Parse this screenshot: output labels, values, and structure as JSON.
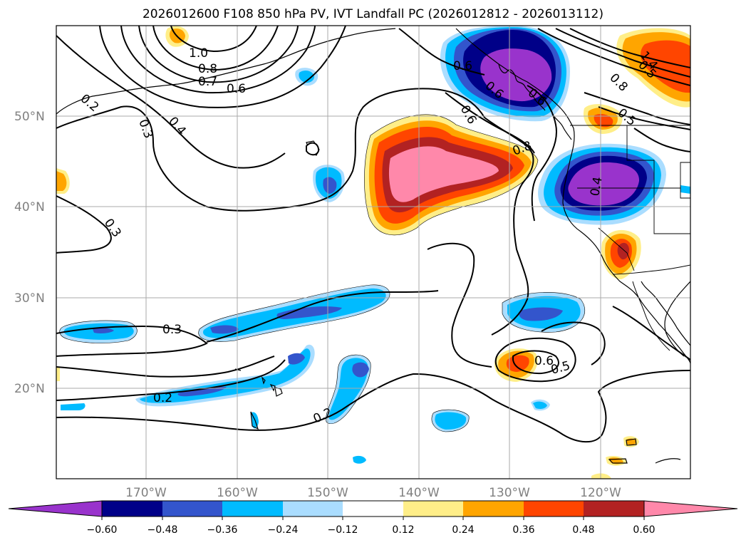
{
  "title": "2026012600 F108 850 hPa PV, IVT Landfall PC (2026012812 - 2026013112)",
  "map": {
    "lat_labels": [
      "50°N",
      "40°N",
      "30°N",
      "20°N"
    ],
    "lon_labels": [
      "170°W",
      "160°W",
      "150°W",
      "140°W",
      "130°W",
      "120°W"
    ],
    "contour_labels": [
      "1.0",
      "0.8",
      "0.7",
      "0.6",
      "0.2",
      "0.3",
      "0.4",
      "0.3",
      "0.3",
      "0.2",
      "0.2",
      "0.6",
      "0.8",
      "0.6",
      "0.5",
      "0.6",
      "0.5",
      "0.8",
      "0.5",
      "0.4",
      "1.4",
      "0.6",
      "0.6"
    ]
  },
  "colorbar": {
    "labels": [
      "−0.60",
      "−0.48",
      "−0.36",
      "−0.24",
      "−0.12",
      "0.12",
      "0.24",
      "0.36",
      "0.48",
      "0.60"
    ],
    "colors": [
      "#9933cc",
      "#000088",
      "#3355cc",
      "#00bbff",
      "#aaddff",
      "#ffffff",
      "#ffee88",
      "#ffa500",
      "#ff4500",
      "#b22222",
      "#ff88aa"
    ]
  },
  "palette": {
    "purple": "#9933cc",
    "navy": "#000088",
    "blue": "#3355cc",
    "cyan": "#00bbff",
    "lightblue": "#aaddff",
    "yellow": "#ffee88",
    "orange": "#ffa500",
    "red": "#ff4500",
    "darkred": "#b22222",
    "pink": "#ff88aa"
  }
}
